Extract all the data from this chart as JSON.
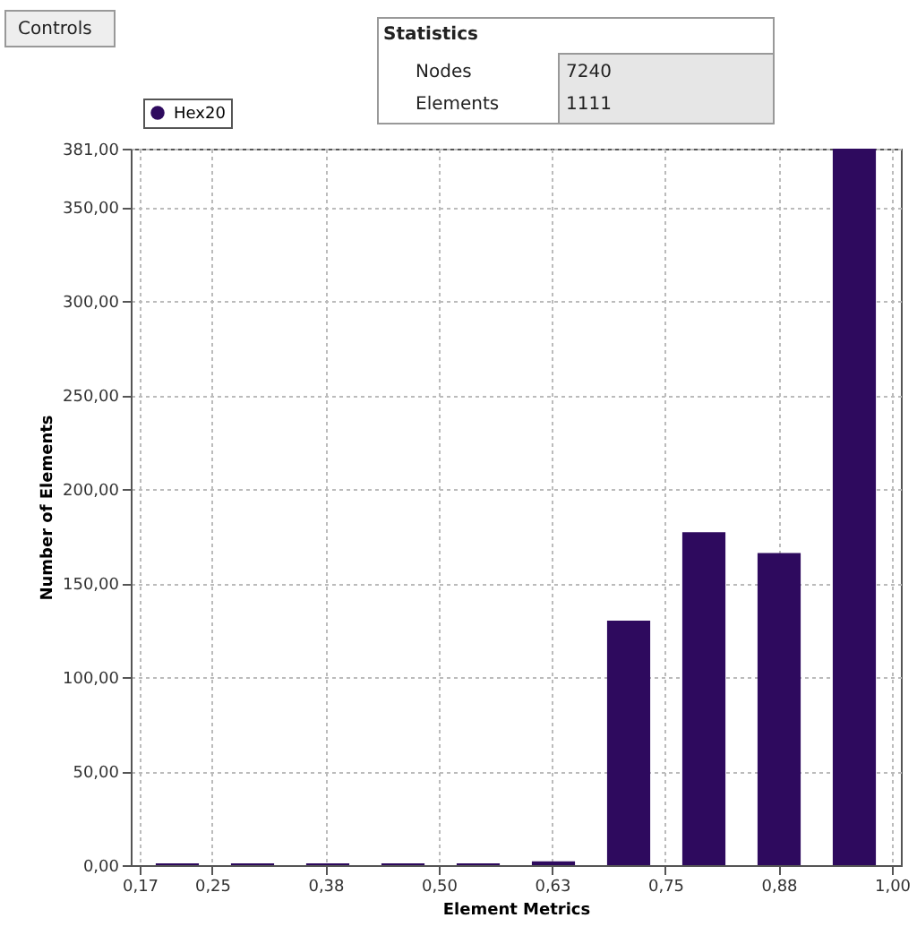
{
  "chart_data": {
    "type": "histogram",
    "xlabel": "Element Metrics",
    "ylabel": "Number of Elements",
    "bins": [
      0.17,
      0.253,
      0.336,
      0.419,
      0.502,
      0.585,
      0.668,
      0.751,
      0.834,
      0.917,
      1.0
    ],
    "series": [
      {
        "name": "Hex20",
        "color": "#2e0a5e",
        "values": [
          1,
          1,
          1,
          1,
          1,
          2,
          130,
          177,
          166,
          381
        ]
      }
    ],
    "xlim": [
      0.17,
      1.0
    ],
    "xticks": [
      {
        "value": 0.17,
        "label": "0,17"
      },
      {
        "value": 0.25,
        "label": "0,25"
      },
      {
        "value": 0.375,
        "label": "0,38"
      },
      {
        "value": 0.5,
        "label": "0,50"
      },
      {
        "value": 0.625,
        "label": "0,63"
      },
      {
        "value": 0.75,
        "label": "0,75"
      },
      {
        "value": 0.875,
        "label": "0,88"
      },
      {
        "value": 1.0,
        "label": "1,00"
      }
    ],
    "ylim": [
      0,
      381
    ],
    "yticks": [
      {
        "value": 0,
        "label": "0,00"
      },
      {
        "value": 50,
        "label": "50,00"
      },
      {
        "value": 100,
        "label": "100,00"
      },
      {
        "value": 150,
        "label": "150,00"
      },
      {
        "value": 200,
        "label": "200,00"
      },
      {
        "value": 250,
        "label": "250,00"
      },
      {
        "value": 300,
        "label": "300,00"
      },
      {
        "value": 350,
        "label": "350,00"
      },
      {
        "value": 381,
        "label": "381,00"
      }
    ],
    "grid": true,
    "legend": "top left",
    "annotations": [
      "Controls",
      "Statistics",
      "Nodes",
      "7240",
      "Elements",
      "1111"
    ]
  }
}
